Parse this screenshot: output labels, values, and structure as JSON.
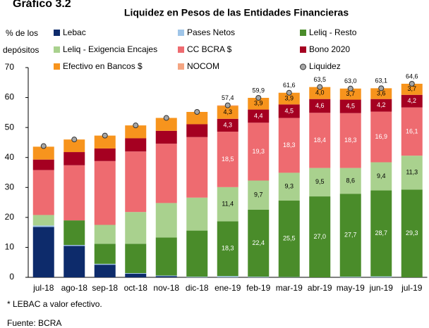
{
  "chart_data": {
    "type": "stacked_bar",
    "heading": "Gráfico 3.2",
    "title": "Liquidez en Pesos de las Entidades Financieras",
    "ylabel": [
      "% de los",
      "depósitos"
    ],
    "categories": [
      "jul-18",
      "ago-18",
      "sep-18",
      "oct-18",
      "nov-18",
      "dic-18",
      "ene-19",
      "feb-19",
      "mar-19",
      "abr-19",
      "may-19",
      "jun-19",
      "jul-19"
    ],
    "ylim": [
      0,
      70
    ],
    "yticks": [
      0,
      10,
      20,
      30,
      40,
      50,
      60,
      70
    ],
    "series": [
      {
        "name": "Lebac",
        "color": "#0d2b6b",
        "values": [
          16.8,
          10.5,
          4.2,
          1.2,
          0.4,
          0,
          0,
          0,
          0,
          0,
          0,
          0,
          0
        ]
      },
      {
        "name": "Pases Netos",
        "color": "#9fc5e8",
        "values": [
          0.5,
          0.3,
          0.3,
          0.2,
          0.2,
          0.2,
          0.4,
          0.2,
          0.1,
          0,
          0.2,
          0.3,
          0
        ]
      },
      {
        "name": "Leliq - Resto",
        "color": "#4a8c2a",
        "values": [
          0,
          8.2,
          6.7,
          9.8,
          12.7,
          15.4,
          18.3,
          22.4,
          25.5,
          27.0,
          27.7,
          28.7,
          29.3
        ],
        "value_labels": [
          null,
          null,
          null,
          null,
          null,
          null,
          "18,3",
          "22,4",
          "25,5",
          "27,0",
          "27,7",
          "28,7",
          "29,3"
        ]
      },
      {
        "name": "Leliq - Exigencia Encajes",
        "color": "#a9d18e",
        "values": [
          3.5,
          0,
          6.3,
          10.6,
          11.5,
          11.0,
          11.4,
          9.7,
          9.3,
          9.5,
          8.6,
          9.4,
          11.3
        ],
        "value_labels": [
          null,
          null,
          null,
          null,
          null,
          null,
          "11,4",
          "9,7",
          "9,3",
          "9,5",
          "8,6",
          "9,4",
          "11,3"
        ]
      },
      {
        "name": "CC BCRA $",
        "color": "#ee6b70",
        "values": [
          15.0,
          18.4,
          21.3,
          20.2,
          19.8,
          20.2,
          18.5,
          19.3,
          18.3,
          18.4,
          18.3,
          16.9,
          16.1
        ],
        "value_labels": [
          null,
          null,
          null,
          null,
          null,
          null,
          "18,5",
          "19,3",
          "18,3",
          "18,4",
          "18,3",
          "16,9",
          "16,1"
        ]
      },
      {
        "name": "Bono 2020",
        "color": "#a50021",
        "values": [
          3.5,
          4.4,
          4.2,
          4.4,
          4.3,
          4.3,
          4.3,
          4.4,
          4.5,
          4.6,
          4.5,
          4.2,
          4.2
        ],
        "value_labels": [
          null,
          null,
          null,
          null,
          null,
          null,
          "4,3",
          "4,4",
          "4,5",
          "4,6",
          "4,5",
          "4,2",
          "4,2"
        ]
      },
      {
        "name": "Efectivo en Bancos $",
        "color": "#f7941d",
        "values": [
          4.3,
          4.2,
          4.3,
          4.3,
          4.3,
          4.1,
          4.3,
          3.9,
          3.9,
          4.0,
          3.7,
          3.6,
          3.7
        ],
        "value_labels": [
          null,
          null,
          null,
          null,
          null,
          null,
          "4,3",
          "3,9",
          "3,9",
          "4,0",
          "3,7",
          "3,6",
          "3,7"
        ]
      },
      {
        "name": "NOCOM",
        "color": "#f4a582",
        "values": [
          0,
          0,
          0,
          0,
          0,
          0,
          0.2,
          0,
          0,
          0,
          0,
          0,
          0
        ]
      }
    ],
    "points": {
      "name": "Liquidez",
      "color": "#a6a6a6",
      "values": [
        43.8,
        46.0,
        47.3,
        50.7,
        53.2,
        55.2,
        57.4,
        59.9,
        61.6,
        63.5,
        63.0,
        63.1,
        64.6
      ],
      "value_labels": [
        null,
        null,
        null,
        null,
        null,
        null,
        "57,4",
        "59,9",
        "61,6",
        "63,5",
        "63,0",
        "63,1",
        "64,6"
      ]
    },
    "notes": [
      "* LEBAC a valor efectivo.",
      "Fuente: BCRA"
    ]
  }
}
